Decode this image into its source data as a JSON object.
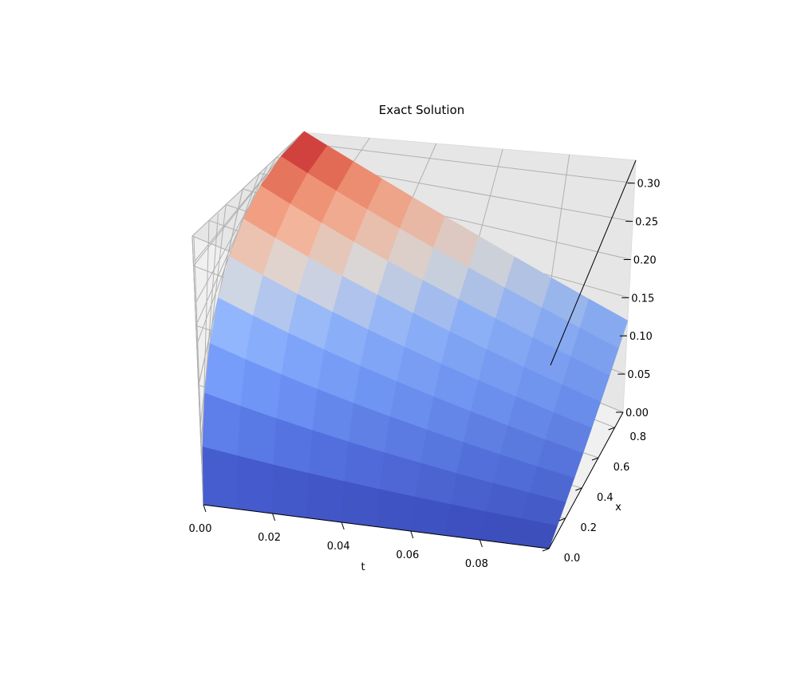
{
  "chart_data": {
    "type": "surface",
    "title": "Exact Solution",
    "xlabel": "t",
    "ylabel": "x",
    "zlabel": "",
    "colormap": "coolwarm",
    "grid": true,
    "xlim": [
      0.0,
      0.1
    ],
    "ylim": [
      0.0,
      0.9
    ],
    "zlim": [
      0.0,
      0.33
    ],
    "x_ticks": [
      "0.00",
      "0.02",
      "0.04",
      "0.06",
      "0.08"
    ],
    "y_ticks": [
      "0.0",
      "0.2",
      "0.4",
      "0.6",
      "0.8"
    ],
    "z_ticks": [
      "0.00",
      "0.05",
      "0.10",
      "0.15",
      "0.20",
      "0.25",
      "0.30"
    ],
    "surface": {
      "t": [
        0.0,
        0.01,
        0.02,
        0.03,
        0.04,
        0.05,
        0.06,
        0.07,
        0.08,
        0.09,
        0.1
      ],
      "x": [
        0.0,
        0.1,
        0.2,
        0.3,
        0.4,
        0.5,
        0.6,
        0.7,
        0.8,
        0.9
      ],
      "z_at_t0": [
        0.0,
        0.037,
        0.074,
        0.111,
        0.148,
        0.185,
        0.222,
        0.259,
        0.296,
        0.333
      ],
      "z_at_tmax": [
        0.0,
        0.013,
        0.027,
        0.04,
        0.053,
        0.067,
        0.08,
        0.093,
        0.107,
        0.12
      ]
    }
  }
}
